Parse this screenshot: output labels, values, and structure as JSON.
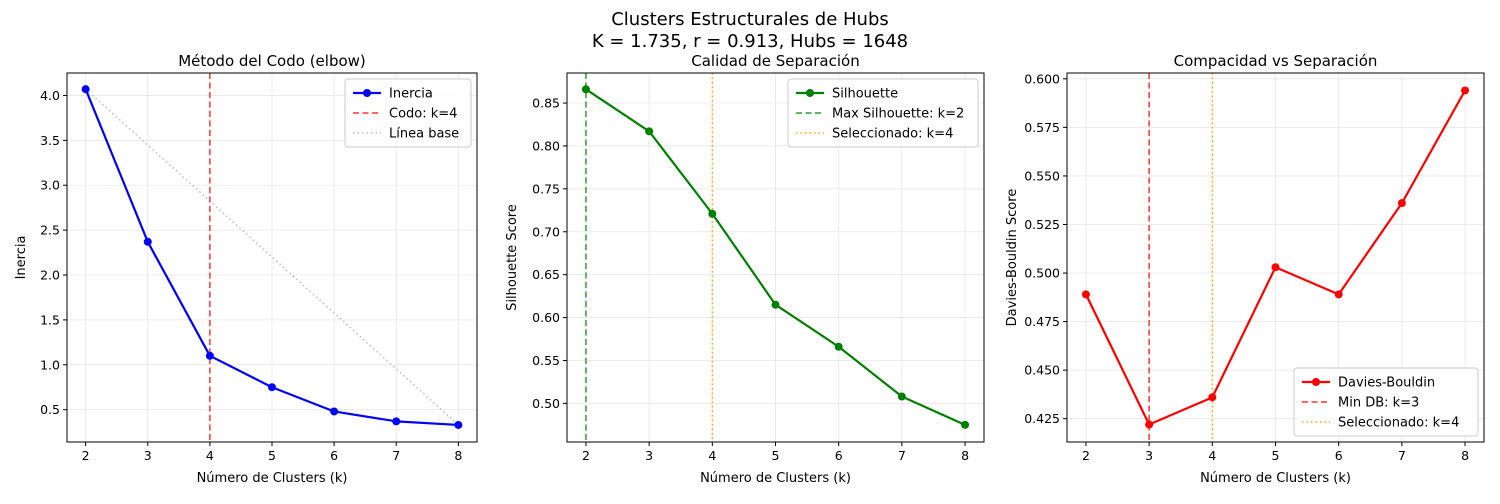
{
  "figure": {
    "title_line1": "Clusters Estructurales de Hubs",
    "title_line2": "K = 1.735, r = 0.913, Hubs = 1648"
  },
  "chart_data": [
    {
      "type": "line",
      "title": "Método del Codo (elbow)",
      "xlabel": "Número de Clusters (k)",
      "ylabel": "Inercia",
      "x": [
        2,
        3,
        4,
        5,
        6,
        7,
        8
      ],
      "xlim": [
        1.7,
        8.3
      ],
      "ylim": [
        0.14,
        4.25
      ],
      "xticks": [
        2,
        3,
        4,
        5,
        6,
        7,
        8
      ],
      "yticks": [
        0.5,
        1.0,
        1.5,
        2.0,
        2.5,
        3.0,
        3.5,
        4.0
      ],
      "ytick_labels": [
        "0.5",
        "1.0",
        "1.5",
        "2.0",
        "2.5",
        "3.0",
        "3.5",
        "4.0"
      ],
      "grid": true,
      "legend_position": "top-right",
      "series": [
        {
          "name": "Inercia",
          "values": [
            4.07,
            2.37,
            1.1,
            0.75,
            0.48,
            0.37,
            0.33
          ],
          "color": "#0000ff",
          "style": "solid",
          "markers": true
        }
      ],
      "baseline": {
        "name": "Línea base",
        "from": [
          2,
          4.07
        ],
        "to": [
          8,
          0.33
        ],
        "color": "#bbbbbb",
        "style": "dotted"
      },
      "vlines": [
        {
          "name": "Codo: k=4",
          "x": 4,
          "color": "#ff3333",
          "style": "dashed"
        }
      ]
    },
    {
      "type": "line",
      "title": "Calidad de Separación",
      "xlabel": "Número de Clusters (k)",
      "ylabel": "Silhouette Score",
      "x": [
        2,
        3,
        4,
        5,
        6,
        7,
        8
      ],
      "xlim": [
        1.7,
        8.3
      ],
      "ylim": [
        0.455,
        0.885
      ],
      "xticks": [
        2,
        3,
        4,
        5,
        6,
        7,
        8
      ],
      "yticks": [
        0.5,
        0.55,
        0.6,
        0.65,
        0.7,
        0.75,
        0.8,
        0.85
      ],
      "ytick_labels": [
        "0.50",
        "0.55",
        "0.60",
        "0.65",
        "0.70",
        "0.75",
        "0.80",
        "0.85"
      ],
      "grid": true,
      "legend_position": "top-right",
      "series": [
        {
          "name": "Silhouette",
          "values": [
            0.866,
            0.817,
            0.721,
            0.615,
            0.566,
            0.508,
            0.475
          ],
          "color": "#008000",
          "style": "solid",
          "markers": true
        }
      ],
      "vlines": [
        {
          "name": "Max Silhouette: k=2",
          "x": 2,
          "color": "#2ca02c",
          "style": "dashed"
        },
        {
          "name": "Seleccionado: k=4",
          "x": 4,
          "color": "#ffa500",
          "style": "dotted"
        }
      ]
    },
    {
      "type": "line",
      "title": "Compacidad vs Separación",
      "xlabel": "Número de Clusters (k)",
      "ylabel": "Davies-Bouldin Score",
      "x": [
        2,
        3,
        4,
        5,
        6,
        7,
        8
      ],
      "xlim": [
        1.7,
        8.3
      ],
      "ylim": [
        0.413,
        0.603
      ],
      "xticks": [
        2,
        3,
        4,
        5,
        6,
        7,
        8
      ],
      "yticks": [
        0.425,
        0.45,
        0.475,
        0.5,
        0.525,
        0.55,
        0.575,
        0.6
      ],
      "ytick_labels": [
        "0.425",
        "0.450",
        "0.475",
        "0.500",
        "0.525",
        "0.550",
        "0.575",
        "0.600"
      ],
      "grid": true,
      "legend_position": "bottom-right",
      "series": [
        {
          "name": "Davies-Bouldin",
          "values": [
            0.489,
            0.422,
            0.436,
            0.503,
            0.489,
            0.536,
            0.594
          ],
          "color": "#ff0000",
          "style": "solid",
          "markers": true
        }
      ],
      "vlines": [
        {
          "name": "Min DB: k=3",
          "x": 3,
          "color": "#ff3333",
          "style": "dashed"
        },
        {
          "name": "Seleccionado: k=4",
          "x": 4,
          "color": "#ffa500",
          "style": "dotted"
        }
      ]
    }
  ]
}
